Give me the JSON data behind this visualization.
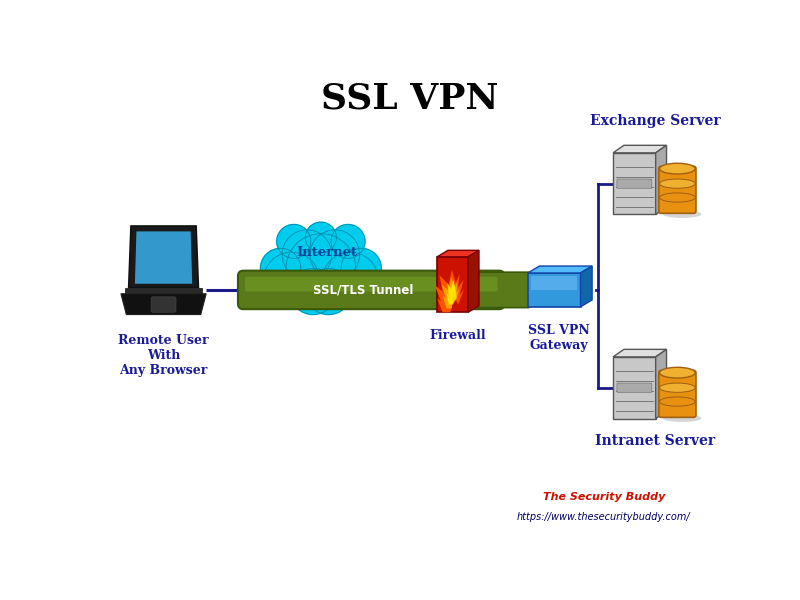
{
  "title": "SSL VPN",
  "title_fontsize": 26,
  "bg_color": "#ffffff",
  "remote_user_label": "Remote User\nWith\nAny Browser",
  "internet_label": "Internet",
  "tunnel_label": "SSL/TLS Tunnel",
  "firewall_label": "Firewall",
  "gateway_label": "SSL VPN\nGateway",
  "exchange_label": "Exchange Server",
  "intranet_label": "Intranet Server",
  "watermark_line1": "The Security Buddy",
  "watermark_line2": "https://www.thesecuritybuddy.com/",
  "cloud_color": "#00ccee",
  "cloud_edge_color": "#008aaa",
  "tunnel_color": "#5a7a1a",
  "tunnel_highlight": "#7aaa28",
  "tunnel_edge_color": "#3a5a0a",
  "firewall_color": "#cc1100",
  "firewall_top": "#ee3322",
  "firewall_side": "#991100",
  "gateway_color": "#3399dd",
  "gateway_top": "#55bbff",
  "gateway_side": "#1166aa",
  "label_color": "#1a1a99",
  "line_color": "#1a1a88",
  "server_front": "#c8c8c8",
  "server_top": "#e0e0e0",
  "server_right": "#aaaaaa",
  "server_edge": "#555555",
  "db_color": "#e89010",
  "db_top": "#f0b030",
  "db_edge": "#a06010",
  "watermark_color1": "#cc1100",
  "watermark_color2": "#000066"
}
